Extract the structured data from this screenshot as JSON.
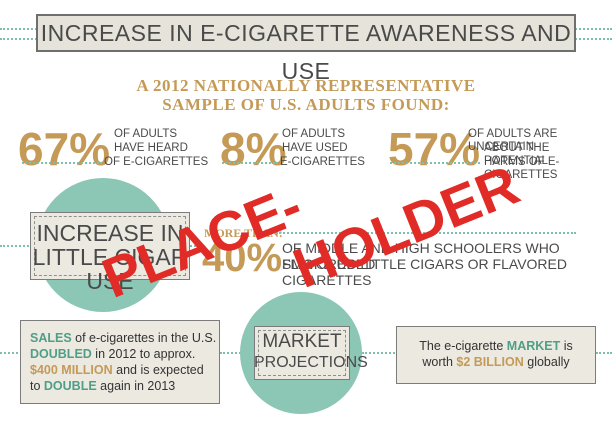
{
  "title": "INCREASE IN E-CIGARETTE AWARENESS AND USE",
  "subhead": {
    "line1": "A 2012 NATIONALLY REPRESENTATIVE",
    "line2": "SAMPLE OF U.S. ADULTS FOUND:"
  },
  "stats": [
    {
      "number": "67%",
      "line1": "OF ADULTS",
      "line2": "HAVE HEARD",
      "line3": "OF E-CIGARETTES"
    },
    {
      "number": "8%",
      "line1": "OF ADULTS",
      "line2": "HAVE USED",
      "line3": "E-CIGARETTES"
    },
    {
      "number": "57%",
      "line1": "OF ADULTS ARE UNCERTAIN",
      "line2": "ABOUT THE POTENTIAL",
      "line3": "HARMS OF E-CIGARETTES"
    }
  ],
  "cigar": {
    "label_line1": "INCREASE IN",
    "label_line2": "LITTLE CIGAR USE",
    "more_than": "MORE THAN:",
    "number": "40%",
    "text_line1": "OF MIDDLE AND HIGH SCHOOLERS WHO SMOKE USED",
    "text_line2": "FLAVORED LITTLE CIGARS OR FLAVORED CIGARETTES"
  },
  "sales": {
    "w1": "SALES",
    "t1": " of e-cigarettes in the U.S.",
    "w2": "DOUBLED",
    "t2": " in 2012 to approx.",
    "w3": "$400 MILLION",
    "t3": " and is expected",
    "t4": "to ",
    "w4": "DOUBLE",
    "t5": " again in 2013"
  },
  "market": {
    "label_line1": "MARKET",
    "label_line2": "PROJECTIONS",
    "t1": "The e-cigarette ",
    "w1": "MARKET",
    "t2": " is",
    "t3": "worth ",
    "w2": "$2 BILLION",
    "t4": " globally"
  },
  "watermark": {
    "word1": "PLACE-",
    "word2": "HOLDER"
  },
  "colors": {
    "gold": "#c49a56",
    "teal": "#8cc6b5",
    "watermark_red": "#e12b26"
  }
}
